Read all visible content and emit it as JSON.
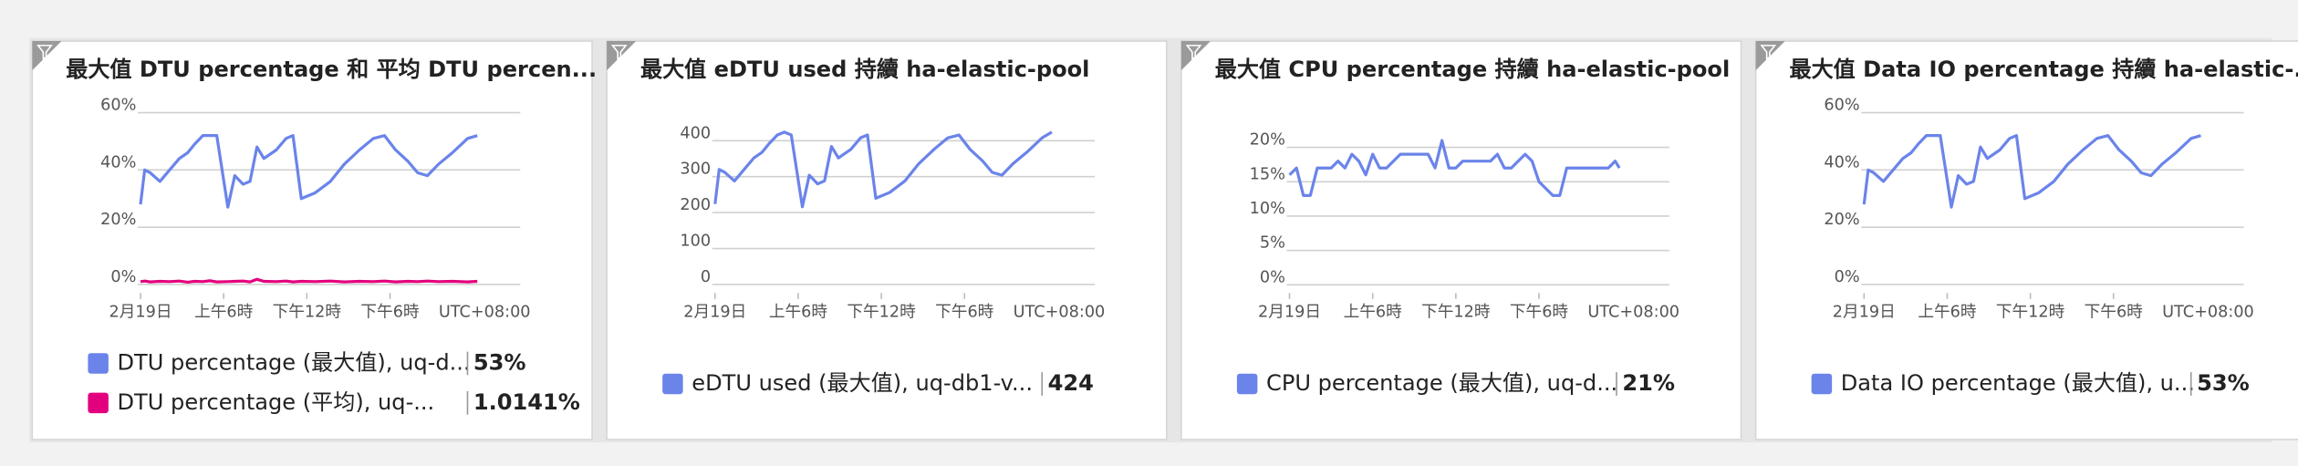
{
  "chart_data": [
    {
      "type": "line",
      "title": "最大值 DTU percentage 和 平均 DTU percen...",
      "timezone": "UTC+08:00",
      "grid": true,
      "x": [
        0,
        0.3,
        0.7,
        1.4,
        2.1,
        2.8,
        3.4,
        3.9,
        4.5,
        5.0,
        5.5,
        6.3,
        6.8,
        7.4,
        7.9,
        8.4,
        8.9,
        9.8,
        10.5,
        11.0,
        11.6,
        12.6,
        13.7,
        14.7,
        15.8,
        16.8,
        17.6,
        18.4,
        19.3,
        20.0,
        20.7,
        21.5,
        22.5,
        23.6,
        24.3
      ],
      "xlim": [
        -0.2,
        27.4
      ],
      "xticks": [
        {
          "value": 0,
          "label": "2月19日"
        },
        {
          "value": 6,
          "label": "上午6時"
        },
        {
          "value": 12,
          "label": "下午12時"
        },
        {
          "value": 18,
          "label": "下午6時"
        }
      ],
      "ylim": [
        -3,
        63
      ],
      "yticks": [
        {
          "value": 0,
          "label": "0%"
        },
        {
          "value": 20,
          "label": "20%"
        },
        {
          "value": 40,
          "label": "40%"
        },
        {
          "value": 60,
          "label": "60%"
        }
      ],
      "series": [
        {
          "name": "DTU percentage (最大值), uq-d...",
          "color": "#6b84ea",
          "legend_value": {
            "value": 53,
            "label": "53%"
          },
          "values": [
            28,
            40,
            39,
            36,
            40,
            44,
            46,
            49,
            52,
            52,
            52,
            27,
            38,
            35,
            36,
            48,
            44,
            47,
            51,
            52,
            30,
            32,
            36,
            42,
            47,
            51,
            52,
            47,
            43,
            39,
            38,
            42,
            46,
            51,
            52
          ]
        },
        {
          "name": "DTU percentage (平均), uq-...",
          "color": "#e3007e",
          "legend_value": {
            "value": 1.0141,
            "label": "1.0141%"
          },
          "values": [
            1.0,
            1.2,
            0.9,
            1.1,
            1.0,
            1.2,
            0.8,
            1.1,
            1.0,
            1.3,
            0.9,
            1.0,
            1.1,
            1.2,
            0.9,
            1.8,
            1.1,
            1.0,
            1.2,
            0.9,
            1.1,
            1.0,
            1.2,
            0.9,
            1.1,
            1.0,
            1.2,
            0.9,
            1.1,
            1.0,
            1.2,
            1.0,
            1.1,
            0.9,
            1.1
          ]
        }
      ]
    },
    {
      "type": "line",
      "title": "最大值 eDTU used 持續 ha-elastic-pool",
      "timezone": "UTC+08:00",
      "grid": true,
      "x": [
        0,
        0.3,
        0.7,
        1.4,
        2.1,
        2.8,
        3.4,
        3.9,
        4.5,
        5.0,
        5.5,
        6.3,
        6.8,
        7.4,
        7.9,
        8.4,
        8.9,
        9.8,
        10.5,
        11.0,
        11.6,
        12.6,
        13.7,
        14.7,
        15.8,
        16.8,
        17.6,
        18.4,
        19.3,
        20.0,
        20.7,
        21.5,
        22.5,
        23.6,
        24.3
      ],
      "xlim": [
        -0.2,
        27.4
      ],
      "xticks": [
        {
          "value": 0,
          "label": "2月19日"
        },
        {
          "value": 6,
          "label": "上午6時"
        },
        {
          "value": 12,
          "label": "下午12時"
        },
        {
          "value": 18,
          "label": "下午6時"
        }
      ],
      "ylim": [
        -24,
        502
      ],
      "yticks": [
        0,
        100,
        200,
        300,
        400
      ],
      "series": [
        {
          "name": "eDTU used (最大值), uq-db1-v...",
          "color": "#6b84ea",
          "legend_value": {
            "value": 424,
            "label": "424"
          },
          "values": [
            224,
            320,
            312,
            288,
            320,
            352,
            368,
            392,
            416,
            424,
            416,
            216,
            304,
            280,
            288,
            384,
            352,
            376,
            408,
            416,
            240,
            256,
            288,
            336,
            376,
            408,
            416,
            376,
            344,
            312,
            304,
            336,
            368,
            408,
            424
          ]
        }
      ]
    },
    {
      "type": "line",
      "title": "最大值 CPU percentage 持續 ha-elastic-pool",
      "timezone": "UTC+08:00",
      "grid": true,
      "x": [
        0,
        0.5,
        1,
        1.5,
        2,
        3,
        3.5,
        4,
        4.5,
        5,
        5.5,
        6,
        6.5,
        7,
        8,
        9,
        10,
        10.5,
        11,
        11.5,
        12,
        12.5,
        13,
        14,
        14.5,
        15,
        15.5,
        16,
        17,
        17.5,
        18,
        19,
        19.5,
        20,
        22,
        23,
        23.5,
        23.8
      ],
      "xlim": [
        -0.2,
        27.4
      ],
      "xticks": [
        {
          "value": 0,
          "label": "2月19日"
        },
        {
          "value": 6,
          "label": "上午6時"
        },
        {
          "value": 12,
          "label": "下午12時"
        },
        {
          "value": 18,
          "label": "下午6時"
        }
      ],
      "ylim": [
        -1.2,
        26.3
      ],
      "yticks": [
        {
          "value": 0,
          "label": "0%"
        },
        {
          "value": 5,
          "label": "5%"
        },
        {
          "value": 10,
          "label": "10%"
        },
        {
          "value": 15,
          "label": "15%"
        },
        {
          "value": 20,
          "label": "20%"
        }
      ],
      "series": [
        {
          "name": "CPU percentage (最大值), uq-d...",
          "color": "#6b84ea",
          "legend_value": {
            "value": 21,
            "label": "21%"
          },
          "values": [
            16,
            17,
            13,
            13,
            17,
            17,
            18,
            17,
            19,
            18,
            16,
            19,
            17,
            17,
            19,
            19,
            19,
            17,
            21,
            17,
            17,
            18,
            18,
            18,
            18,
            19,
            17,
            17,
            19,
            18,
            15,
            13,
            13,
            17,
            17,
            17,
            18,
            17
          ]
        }
      ]
    },
    {
      "type": "line",
      "title": "最大值 Data IO percentage 持續 ha-elastic-...",
      "timezone": "UTC+08:00",
      "grid": true,
      "x": [
        0,
        0.3,
        0.7,
        1.4,
        2.1,
        2.8,
        3.4,
        3.9,
        4.5,
        5.0,
        5.5,
        6.3,
        6.8,
        7.4,
        7.9,
        8.4,
        8.9,
        9.8,
        10.5,
        11.0,
        11.6,
        12.6,
        13.7,
        14.7,
        15.8,
        16.8,
        17.6,
        18.4,
        19.3,
        20.0,
        20.7,
        21.5,
        22.5,
        23.6,
        24.3
      ],
      "xlim": [
        -0.2,
        27.4
      ],
      "xticks": [
        {
          "value": 0,
          "label": "2月19日"
        },
        {
          "value": 6,
          "label": "上午6時"
        },
        {
          "value": 12,
          "label": "下午12時"
        },
        {
          "value": 18,
          "label": "下午6時"
        }
      ],
      "ylim": [
        -3,
        63
      ],
      "yticks": [
        {
          "value": 0,
          "label": "0%"
        },
        {
          "value": 20,
          "label": "20%"
        },
        {
          "value": 40,
          "label": "40%"
        },
        {
          "value": 60,
          "label": "60%"
        }
      ],
      "series": [
        {
          "name": "Data IO percentage (最大值), u...",
          "color": "#6b84ea",
          "legend_value": {
            "value": 53,
            "label": "53%"
          },
          "values": [
            28,
            40,
            39,
            36,
            40,
            44,
            46,
            49,
            52,
            52,
            52,
            27,
            38,
            35,
            36,
            48,
            44,
            47,
            51,
            52,
            30,
            32,
            36,
            42,
            47,
            51,
            52,
            47,
            43,
            39,
            38,
            42,
            46,
            51,
            52
          ]
        }
      ]
    }
  ]
}
